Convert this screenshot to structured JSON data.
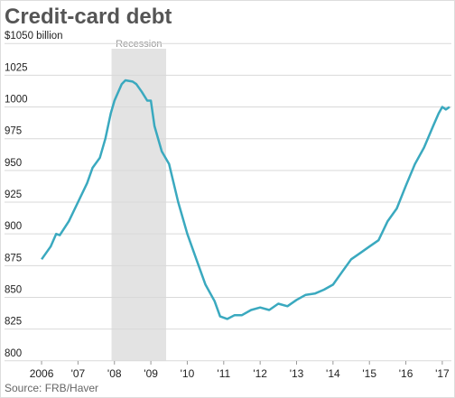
{
  "chart_data": {
    "type": "line",
    "title": "Credit-card debt",
    "source": "Source: FRB/Haver",
    "recession": {
      "start": 2007.92,
      "end": 2009.42,
      "label": "Recession"
    },
    "xlim": [
      2005.85,
      2017.25
    ],
    "xticks": [
      {
        "value": 2006,
        "label": "2006"
      },
      {
        "value": 2007,
        "label": "'07"
      },
      {
        "value": 2008,
        "label": "'08"
      },
      {
        "value": 2009,
        "label": "'09"
      },
      {
        "value": 2010,
        "label": "'10"
      },
      {
        "value": 2011,
        "label": "'11"
      },
      {
        "value": 2012,
        "label": "'12"
      },
      {
        "value": 2013,
        "label": "'13"
      },
      {
        "value": 2014,
        "label": "'14"
      },
      {
        "value": 2015,
        "label": "'15"
      },
      {
        "value": 2016,
        "label": "'16"
      },
      {
        "value": 2017,
        "label": "'17"
      }
    ],
    "ylim": [
      797,
      1053
    ],
    "yticks": [
      800,
      825,
      850,
      875,
      900,
      925,
      950,
      975,
      1000,
      1025,
      {
        "value": 1050,
        "label": "$1050 billion"
      }
    ],
    "grid": true,
    "x": [
      2006.0,
      2006.25,
      2006.4,
      2006.5,
      2006.75,
      2007.0,
      2007.25,
      2007.4,
      2007.6,
      2007.75,
      2007.9,
      2008.0,
      2008.2,
      2008.3,
      2008.5,
      2008.6,
      2008.75,
      2008.9,
      2009.0,
      2009.1,
      2009.3,
      2009.5,
      2009.75,
      2010.0,
      2010.25,
      2010.5,
      2010.75,
      2010.9,
      2011.1,
      2011.3,
      2011.5,
      2011.75,
      2012.0,
      2012.25,
      2012.5,
      2012.75,
      2013.0,
      2013.25,
      2013.5,
      2013.75,
      2014.0,
      2014.25,
      2014.5,
      2014.75,
      2015.0,
      2015.25,
      2015.5,
      2015.75,
      2016.0,
      2016.25,
      2016.5,
      2016.75,
      2016.9,
      2017.0,
      2017.1,
      2017.2
    ],
    "series": [
      {
        "name": "Credit-card debt",
        "color": "#3aa9bf",
        "values": [
          880,
          890,
          900,
          899,
          910,
          925,
          940,
          952,
          960,
          975,
          995,
          1005,
          1018,
          1021,
          1020,
          1018,
          1012,
          1005,
          1005,
          985,
          965,
          955,
          925,
          900,
          880,
          860,
          847,
          835,
          833,
          836,
          836,
          840,
          842,
          840,
          845,
          843,
          848,
          852,
          853,
          856,
          860,
          870,
          880,
          885,
          890,
          895,
          910,
          920,
          938,
          955,
          968,
          985,
          995,
          1000,
          998,
          1000
        ]
      }
    ]
  }
}
